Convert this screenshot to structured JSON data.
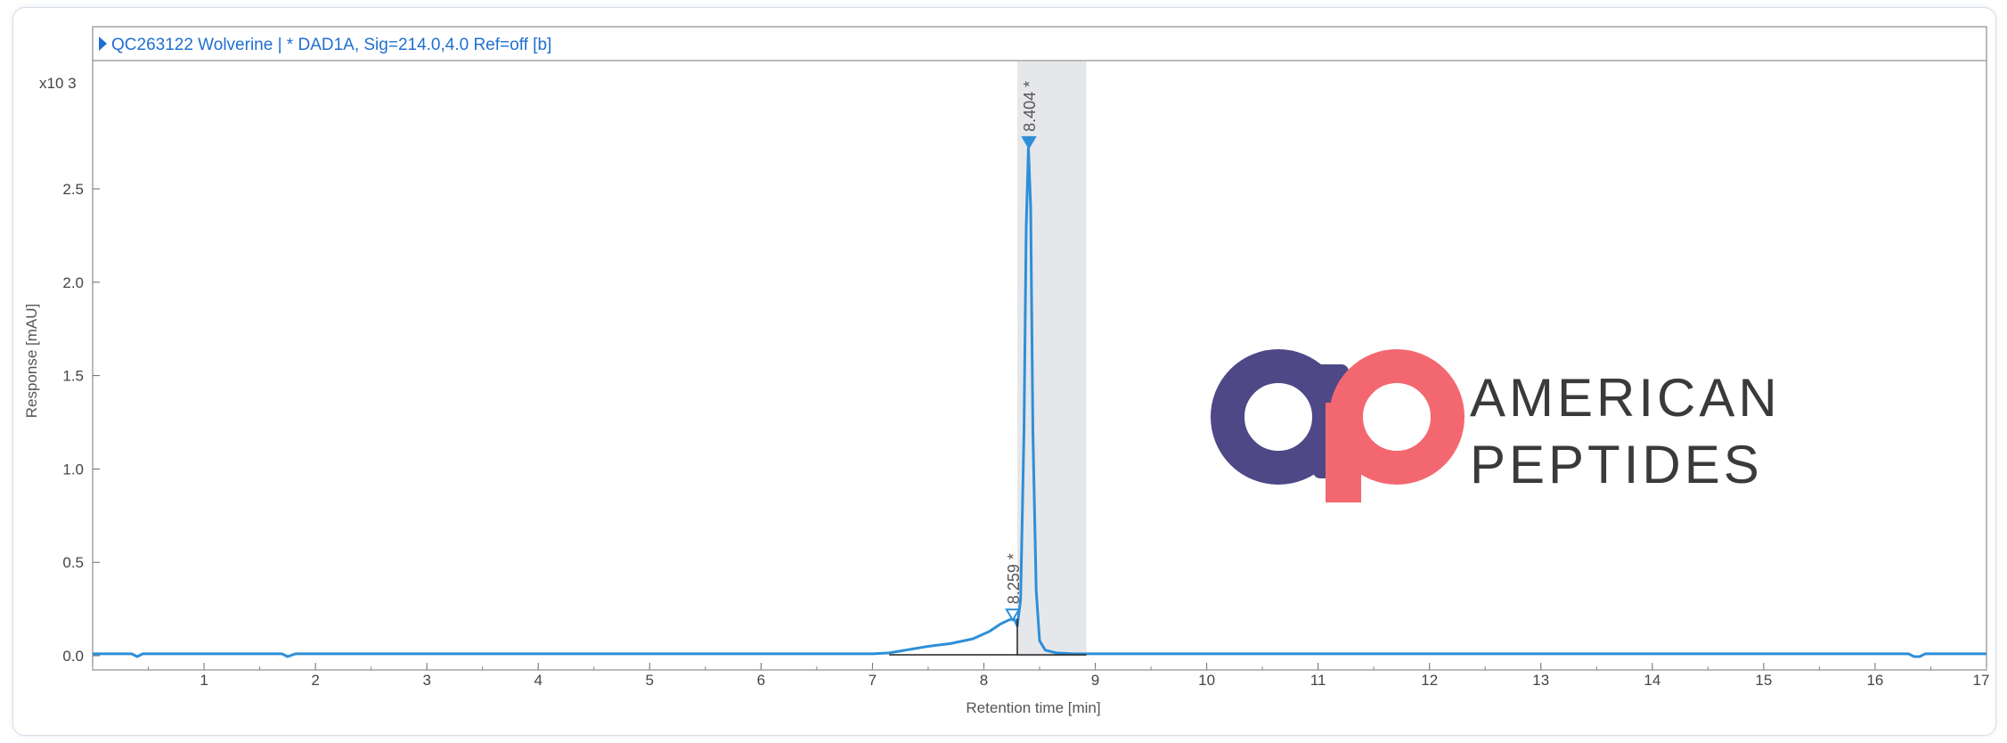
{
  "header": {
    "title": "QC263122 Wolverine | * DAD1A, Sig=214.0,4.0  Ref=off [b]"
  },
  "chart_data": {
    "type": "line",
    "ylabel": "Response [mAU]",
    "xlabel": "Retention time [min]",
    "y_multiplier_label": "x10 3",
    "xlim": [
      0,
      17
    ],
    "ylim": [
      -0.05,
      3.2
    ],
    "y_unit_scale": 1000,
    "xticks": [
      1,
      2,
      3,
      4,
      5,
      6,
      7,
      8,
      9,
      10,
      11,
      12,
      13,
      14,
      15,
      16,
      17
    ],
    "yticks": [
      0.0,
      0.5,
      1.0,
      1.5,
      2.0,
      2.5
    ],
    "ytick_labels": [
      "0.0",
      "0.5",
      "1.0",
      "1.5",
      "2.0",
      "2.5"
    ],
    "series": [
      {
        "color": "#2e8fd8",
        "x": [
          0,
          0.35,
          0.4,
          0.45,
          1.7,
          1.75,
          1.82,
          7.0,
          7.15,
          7.3,
          7.5,
          7.7,
          7.9,
          8.05,
          8.15,
          8.22,
          8.27,
          8.3,
          8.33,
          8.36,
          8.38,
          8.4,
          8.42,
          8.44,
          8.47,
          8.5,
          8.55,
          8.65,
          8.8,
          9.0,
          16.3,
          16.35,
          16.4,
          16.45,
          17
        ],
        "y": [
          0.01,
          0.01,
          -0.005,
          0.01,
          0.01,
          -0.005,
          0.01,
          0.01,
          0.015,
          0.03,
          0.05,
          0.065,
          0.09,
          0.13,
          0.17,
          0.19,
          0.2,
          0.16,
          0.3,
          1.2,
          2.3,
          2.72,
          2.4,
          1.2,
          0.35,
          0.08,
          0.03,
          0.015,
          0.01,
          0.01,
          0.01,
          -0.005,
          -0.005,
          0.01,
          0.01
        ]
      }
    ],
    "peaks": [
      {
        "x": 8.259,
        "y": 0.19,
        "label": "8.259 *"
      },
      {
        "x": 8.404,
        "y": 2.72,
        "label": "8.404 *"
      }
    ],
    "integration_region": [
      8.3,
      8.92
    ],
    "baseline": [
      7.15,
      8.92
    ]
  },
  "logo": {
    "line1": "AMERICAN",
    "line2": "PEPTIDES",
    "color_a": "#4e4887",
    "color_p": "#f36870"
  }
}
